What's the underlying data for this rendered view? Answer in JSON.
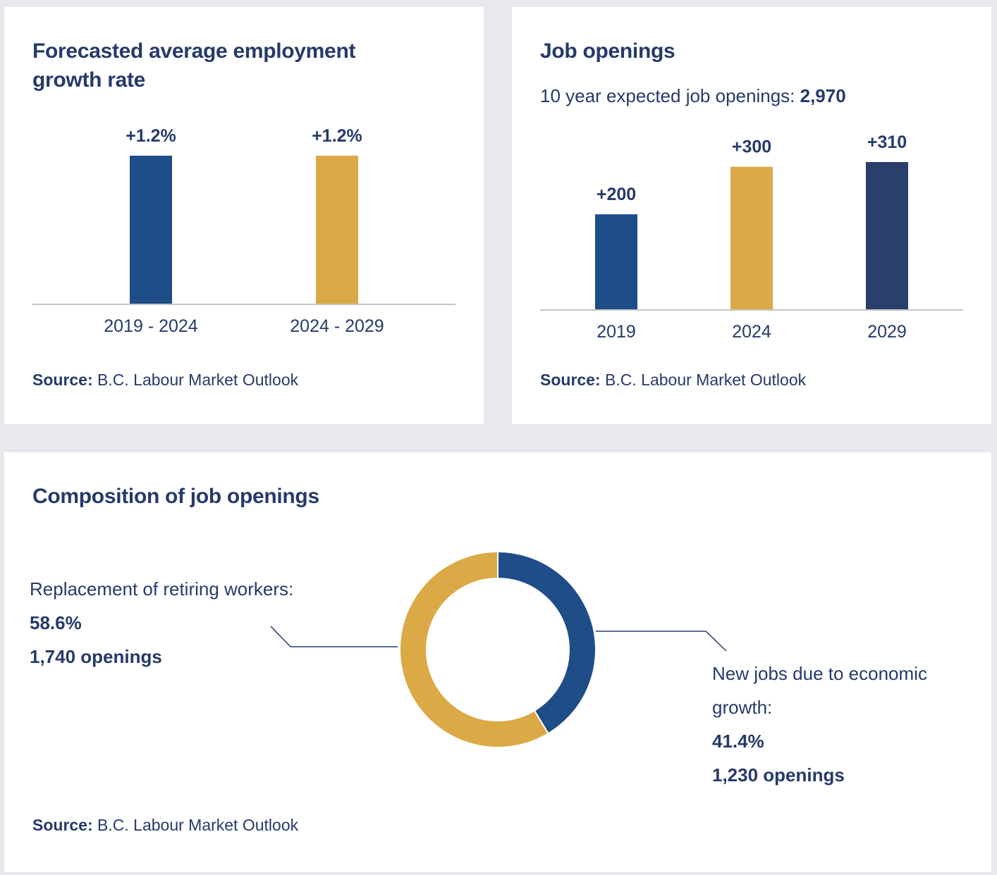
{
  "colors": {
    "background": "#e8e9ee",
    "card": "#ffffff",
    "text": "#263a6a",
    "blue": "#1e4d87",
    "gold": "#dba946",
    "navy": "#2b3f6d",
    "axis": "#c6c6c6"
  },
  "source": {
    "label": "Source:",
    "text": " B.C. Labour Market Outlook"
  },
  "chart_data": [
    {
      "type": "bar",
      "title": "Forecasted average employment growth rate",
      "categories": [
        "2019 - 2024",
        "2024 - 2029"
      ],
      "values": [
        1.2,
        1.2
      ],
      "value_labels": [
        "+1.2%",
        "+1.2%"
      ],
      "bar_colors": [
        "#1e4d87",
        "#dba946"
      ],
      "xlabel": "",
      "ylabel": "",
      "unit": "%",
      "ylim": [
        0,
        1.2
      ],
      "grid": false,
      "legend": "none"
    },
    {
      "type": "bar",
      "title": "Job openings",
      "subtitle_label": "10 year expected job openings: ",
      "subtitle_value": "2,970",
      "categories": [
        "2019",
        "2024",
        "2029"
      ],
      "values": [
        200,
        300,
        310
      ],
      "value_labels": [
        "+200",
        "+300",
        "+310"
      ],
      "bar_colors": [
        "#1e4d87",
        "#dba946",
        "#2b3f6d"
      ],
      "xlabel": "",
      "ylabel": "",
      "ylim": [
        0,
        310
      ],
      "grid": false,
      "legend": "none"
    },
    {
      "type": "pie",
      "variant": "donut",
      "title": "Composition of job openings",
      "slices": [
        {
          "name": "New jobs due to economic growth:",
          "percent": 41.4,
          "count_label": "1,230 openings",
          "value": 1230,
          "color": "#1e4d87"
        },
        {
          "name": "Replacement of retiring workers:",
          "percent": 58.6,
          "count_label": "1,740 openings",
          "value": 1740,
          "color": "#dba946"
        }
      ],
      "percent_labels": [
        "41.4%",
        "58.6%"
      ],
      "legend": "callouts"
    }
  ]
}
